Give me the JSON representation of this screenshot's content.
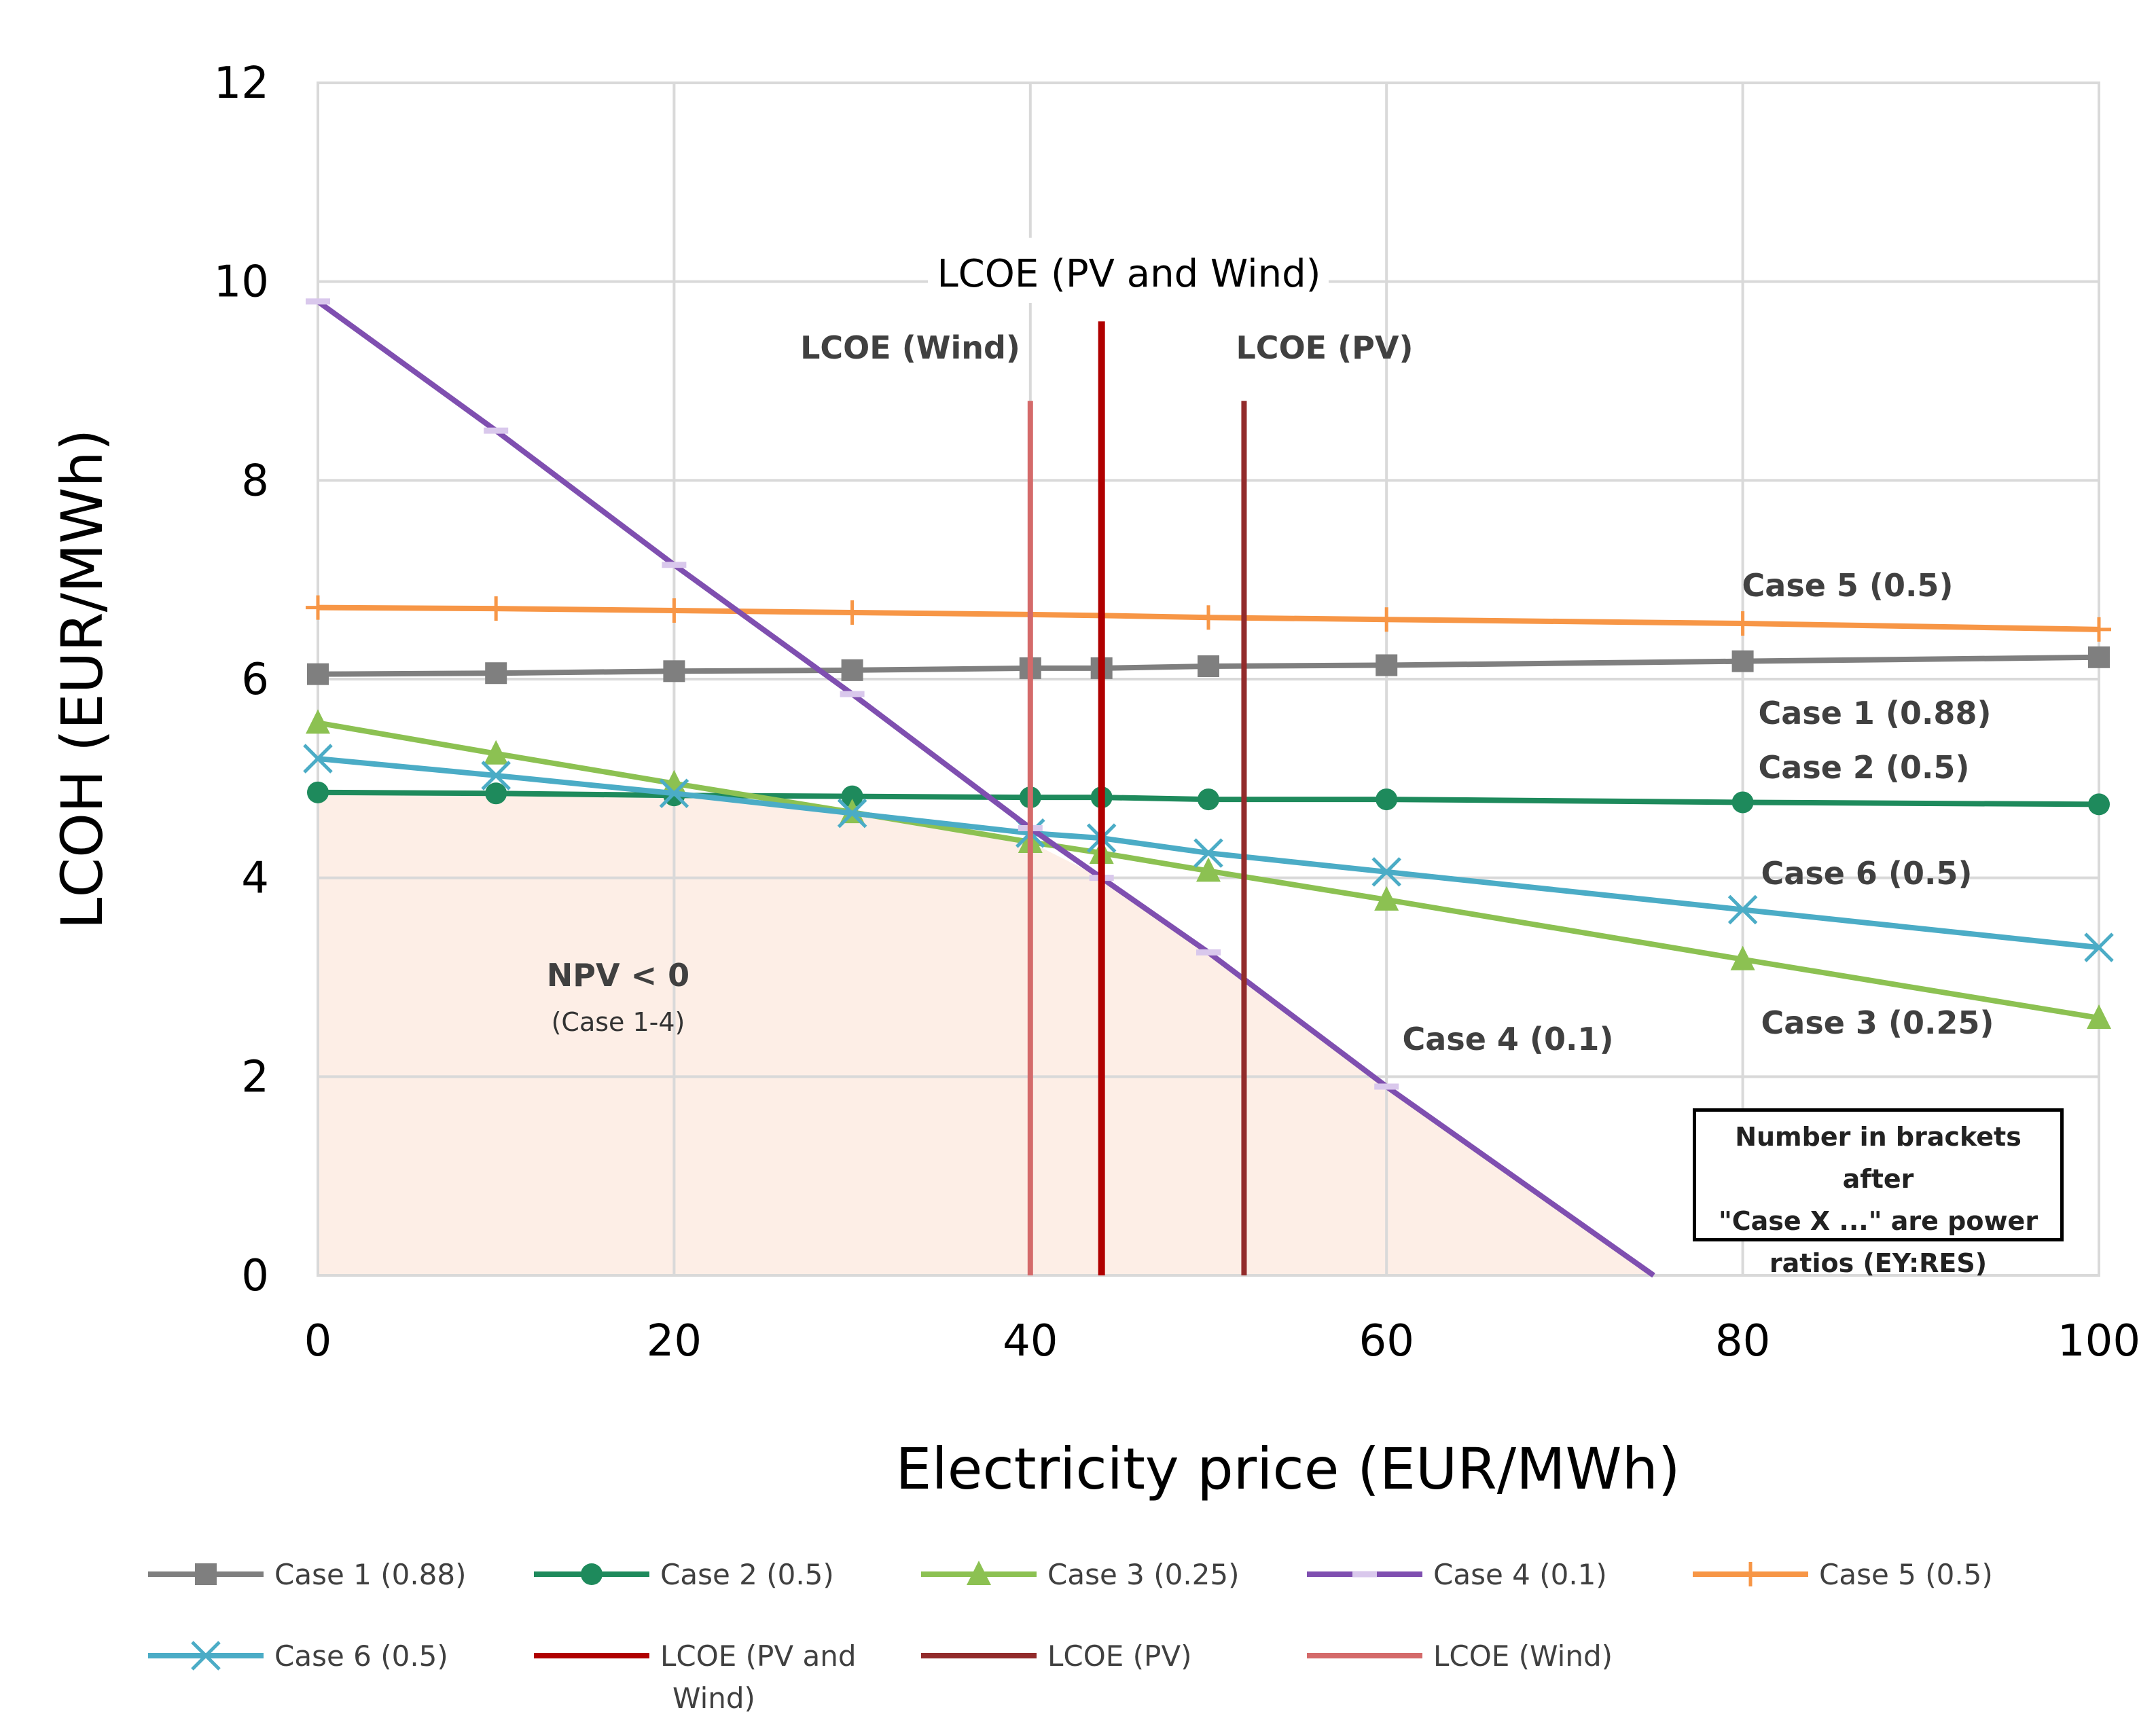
{
  "chart_data": {
    "type": "line",
    "title": "",
    "xlabel": "Electricity price (EUR/MWh)",
    "ylabel": "LCOH (EUR/MWh)",
    "xlim": [
      0,
      100
    ],
    "ylim": [
      0,
      12
    ],
    "x_ticks": [
      0,
      20,
      40,
      60,
      80,
      100
    ],
    "y_ticks": [
      0,
      2,
      4,
      6,
      8,
      10,
      12
    ],
    "grid": true,
    "x": [
      0,
      10,
      20,
      30,
      40,
      44,
      50,
      60,
      80,
      100
    ],
    "series": [
      {
        "name": "Case 1 (0.88)",
        "color": "#7f7f7f",
        "marker": "square",
        "values": [
          6.05,
          6.06,
          6.08,
          6.09,
          6.11,
          6.11,
          6.13,
          6.14,
          6.18,
          6.22
        ]
      },
      {
        "name": "Case 2 (0.5)",
        "color": "#1e8a5c",
        "marker": "circle",
        "values": [
          4.86,
          4.85,
          4.83,
          4.82,
          4.81,
          4.81,
          4.79,
          4.79,
          4.76,
          4.74
        ]
      },
      {
        "name": "Case 3 (0.25)",
        "color": "#8cc152",
        "marker": "triangle",
        "values": [
          5.56,
          5.25,
          4.95,
          4.66,
          4.36,
          4.25,
          4.07,
          3.78,
          3.18,
          2.59
        ]
      },
      {
        "name": "Case 4 (0.1)",
        "color": "#7f4fb0",
        "marker": "dash",
        "values": [
          9.8,
          8.5,
          7.15,
          5.85,
          4.5,
          4.0,
          3.25,
          1.9,
          null,
          null
        ]
      },
      {
        "name": "Case 5 (0.5)",
        "color": "#f79646",
        "marker": "plus",
        "values": [
          6.72,
          6.71,
          6.69,
          6.67,
          6.65,
          6.64,
          6.62,
          6.6,
          6.56,
          6.5
        ]
      },
      {
        "name": "Case 6 (0.5)",
        "color": "#4bacc6",
        "marker": "x",
        "values": [
          5.2,
          5.03,
          4.85,
          4.65,
          4.45,
          4.4,
          4.25,
          4.06,
          3.68,
          3.3
        ]
      }
    ],
    "case4_zero_crossing_x": 75,
    "shaded_region": {
      "label": "NPV < 0",
      "sublabel": "(Case 1-4)",
      "color": "#fdeee6"
    },
    "vertical_lines": [
      {
        "name": "LCOE (PV and Wind)",
        "legend_label": "LCOE (PV and\nWind)",
        "x": 44,
        "y_top": 9.6,
        "color": "#b00000",
        "annotation": "LCOE (PV and Wind)"
      },
      {
        "name": "LCOE (PV)",
        "legend_label": "LCOE (PV)",
        "x": 52,
        "y_top": 8.8,
        "color": "#922b2b",
        "annotation": "LCOE (PV)"
      },
      {
        "name": "LCOE (Wind)",
        "legend_label": "LCOE (Wind)",
        "x": 40,
        "y_top": 8.8,
        "color": "#d46a6a",
        "annotation": "LCOE (Wind)"
      }
    ],
    "series_annotations": [
      "Case 5 (0.5)",
      "Case 1 (0.88)",
      "Case 2 (0.5)",
      "Case 6 (0.5)",
      "Case 4 (0.1)",
      "Case 3 (0.25)"
    ],
    "note": [
      "Number in brackets after",
      "\"Case X ...\" are power",
      "ratios (EY:RES)"
    ],
    "legend": {
      "placement": "bottom",
      "entries": [
        "Case 1 (0.88)",
        "Case 2 (0.5)",
        "Case 3 (0.25)",
        "Case 4 (0.1)",
        "Case 5 (0.5)",
        "Case 6 (0.5)",
        "LCOE (PV and\nWind)",
        "LCOE (PV)",
        "LCOE (Wind)"
      ]
    }
  }
}
